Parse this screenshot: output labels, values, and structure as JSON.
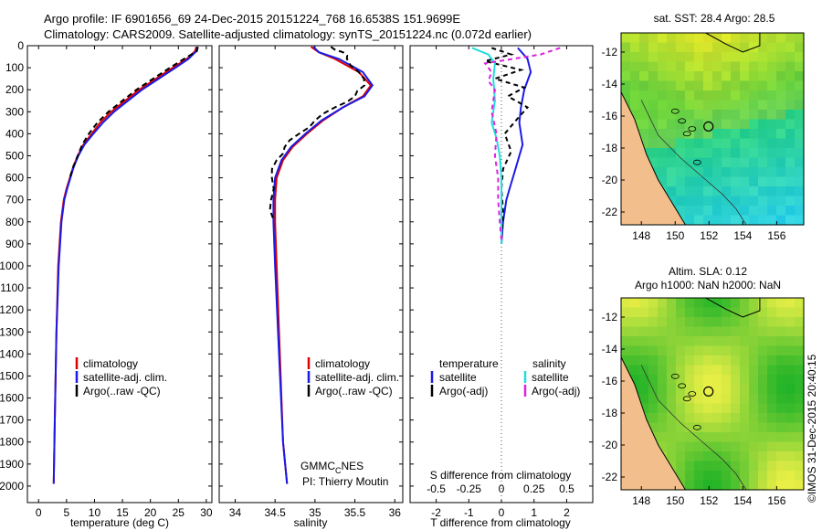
{
  "header": {
    "line1": "Argo profile: IF 6901656_69 24-Dec-2015 20151224_768 16.6538S 151.9699E",
    "line2": "Climatology: CARS2009. Satellite-adjusted climatology: synTS_20151224.nc (0.072d earlier)"
  },
  "colors": {
    "climatology": "#e00000",
    "satellite": "#1a1ae6",
    "argo": "#000000",
    "sat_salinity": "#22dddd",
    "argo_salinity": "#dd22dd"
  },
  "chart_data": [
    {
      "id": "temperature",
      "type": "line",
      "xlabel": "temperature (deg C)",
      "ylabel": "",
      "xlim": [
        -2,
        31
      ],
      "ylim": [
        2075,
        0
      ],
      "xticks": [
        "0",
        "5",
        "10",
        "15",
        "20",
        "25",
        "30"
      ],
      "xtick_values": [
        0,
        5,
        10,
        15,
        20,
        25,
        30
      ],
      "series": [
        {
          "name": "climatology",
          "color": "#e00000",
          "dash": "",
          "x": [
            28.2,
            28.0,
            26.5,
            24.0,
            21.0,
            18.0,
            15.5,
            13.0,
            11.0,
            9.5,
            8.0,
            7.0,
            6.2,
            5.6,
            5.0,
            4.5,
            4.0,
            3.5,
            3.2,
            2.9,
            2.7
          ],
          "y": [
            5,
            25,
            60,
            100,
            150,
            200,
            250,
            300,
            350,
            400,
            450,
            500,
            550,
            600,
            650,
            700,
            800,
            1000,
            1300,
            1700,
            1990
          ]
        },
        {
          "name": "satellite-adj. clim.",
          "color": "#1a1ae6",
          "dash": "",
          "x": [
            28.4,
            28.2,
            26.8,
            24.5,
            21.5,
            18.5,
            16.0,
            13.5,
            11.5,
            9.8,
            8.2,
            7.1,
            6.3,
            5.7,
            5.1,
            4.6,
            4.1,
            3.6,
            3.2,
            2.9,
            2.7
          ],
          "y": [
            5,
            25,
            60,
            100,
            150,
            200,
            250,
            300,
            350,
            400,
            450,
            500,
            550,
            600,
            650,
            700,
            800,
            1000,
            1300,
            1700,
            1990
          ]
        },
        {
          "name": "Argo(..raw -QC)",
          "color": "#000000",
          "dash": "6,4",
          "x": [
            28.5,
            28.3,
            26.0,
            23.5,
            20.5,
            17.5,
            15.0,
            12.5,
            10.5,
            9.0,
            7.8,
            7.0,
            6.2,
            5.6
          ],
          "y": [
            5,
            25,
            60,
            100,
            150,
            200,
            250,
            300,
            350,
            400,
            450,
            500,
            550,
            600
          ]
        }
      ],
      "legend": [
        "climatology",
        "satellite-adj. clim.",
        "Argo(..raw -QC)"
      ]
    },
    {
      "id": "salinity",
      "type": "line",
      "xlabel": "salinity",
      "xlim": [
        33.8,
        36.1
      ],
      "ylim": [
        2075,
        0
      ],
      "xticks": [
        "34",
        "34.5",
        "35",
        "35.5",
        "36"
      ],
      "xtick_values": [
        34,
        34.5,
        35,
        35.5,
        36
      ],
      "series": [
        {
          "name": "climatology",
          "color": "#e00000",
          "dash": "",
          "x": [
            34.95,
            35.05,
            35.25,
            35.55,
            35.7,
            35.6,
            35.35,
            35.1,
            34.9,
            34.72,
            34.6,
            34.52,
            34.5,
            34.5,
            34.52,
            34.56,
            34.6,
            34.65
          ],
          "y": [
            5,
            30,
            60,
            120,
            180,
            230,
            280,
            340,
            400,
            460,
            520,
            600,
            700,
            800,
            1000,
            1400,
            1800,
            1990
          ]
        },
        {
          "name": "satellite-adj. clim.",
          "color": "#1a1ae6",
          "dash": "",
          "x": [
            34.98,
            35.05,
            35.3,
            35.6,
            35.72,
            35.62,
            35.35,
            35.08,
            34.88,
            34.7,
            34.58,
            34.5,
            34.48,
            34.48,
            34.5,
            34.55,
            34.6,
            34.65
          ],
          "y": [
            5,
            30,
            60,
            120,
            180,
            230,
            280,
            340,
            400,
            460,
            520,
            600,
            700,
            800,
            1000,
            1400,
            1800,
            1990
          ]
        },
        {
          "name": "Argo(..raw -QC)",
          "color": "#000000",
          "dash": "6,4",
          "x": [
            35.2,
            35.35,
            35.4,
            35.55,
            35.62,
            35.5,
            35.25,
            35.0,
            34.8,
            34.62,
            34.52,
            34.46,
            34.45,
            34.48
          ],
          "y": [
            5,
            30,
            60,
            120,
            180,
            230,
            280,
            340,
            400,
            460,
            520,
            600,
            700,
            790
          ],
          "jitter": true
        }
      ],
      "legend": [
        "climatology",
        "satellite-adj. clim.",
        "Argo(..raw -QC)"
      ],
      "annotations": {
        "gmmc": "GMMC",
        "gmmc_sub": "C",
        "gmmc_tail": "NES",
        "pi": "PI: Thierry Moutin"
      }
    },
    {
      "id": "difference",
      "type": "line",
      "xlabel": "T difference from climatology",
      "xlabel_top": "S difference from climatology",
      "xlim": [
        -2.8,
        2.8
      ],
      "ylim": [
        2075,
        0
      ],
      "xticks": [
        "-2",
        "-1",
        "0",
        "1",
        "2"
      ],
      "xtick_values": [
        -2,
        -1,
        0,
        1,
        2
      ],
      "sticks": [
        "-0.5",
        "-0.25",
        "0",
        "0.25",
        "0.5"
      ],
      "stick_values": [
        -2,
        -1,
        0,
        1,
        2
      ],
      "series": [
        {
          "name": "temperature satellite",
          "color": "#1a1ae6",
          "dash": "",
          "x": [
            0.5,
            0.8,
            0.9,
            0.7,
            0.6,
            0.55,
            0.6,
            0.65,
            0.55,
            0.45,
            0.35,
            0.25,
            0.15,
            0.05,
            0.0
          ],
          "y": [
            10,
            60,
            120,
            200,
            280,
            350,
            400,
            450,
            500,
            550,
            600,
            650,
            700,
            800,
            900
          ]
        },
        {
          "name": "temperature Argo(-adj)",
          "color": "#000000",
          "dash": "5,4",
          "x": [
            -0.3,
            0.3,
            -0.5,
            0.6,
            -0.2,
            0.7,
            0.2,
            0.8,
            0.5,
            0.1,
            0.3,
            0.05,
            0.0,
            0.05,
            0.0
          ],
          "y": [
            10,
            40,
            70,
            110,
            150,
            190,
            230,
            280,
            330,
            400,
            480,
            560,
            650,
            750,
            880
          ]
        },
        {
          "name": "salinity satellite",
          "color": "#22dddd",
          "dash": "",
          "x": [
            -0.9,
            -0.4,
            -0.2,
            -0.25,
            -0.2,
            -0.3,
            -0.15,
            -0.05,
            0.0,
            0.0,
            0.0,
            0.0
          ],
          "y": [
            10,
            40,
            80,
            150,
            250,
            350,
            420,
            500,
            600,
            700,
            800,
            900
          ]
        },
        {
          "name": "salinity Argo(-adj)",
          "color": "#dd22dd",
          "dash": "5,4",
          "x": [
            1.8,
            1.2,
            -0.5,
            -0.3,
            -0.4,
            -0.2,
            -0.3,
            -0.15,
            -0.2,
            -0.1,
            -0.1,
            -0.05,
            0.0
          ],
          "y": [
            10,
            40,
            80,
            120,
            160,
            200,
            300,
            400,
            500,
            600,
            700,
            800,
            880
          ]
        }
      ],
      "legend_groups": [
        "temperature",
        "salinity"
      ],
      "legend": [
        "satellite",
        "Argo(-adj)",
        "satellite",
        "Argo(-adj)"
      ]
    }
  ],
  "depth_ticks": [
    "0",
    "100",
    "200",
    "300",
    "400",
    "500",
    "600",
    "700",
    "800",
    "900",
    "1000",
    "1100",
    "1200",
    "1300",
    "1400",
    "1500",
    "1600",
    "1700",
    "1800",
    "1900",
    "2000"
  ],
  "depth_values": [
    0,
    100,
    200,
    300,
    400,
    500,
    600,
    700,
    800,
    900,
    1000,
    1100,
    1200,
    1300,
    1400,
    1500,
    1600,
    1700,
    1800,
    1900,
    2000
  ],
  "maps": {
    "sst_title": "sat. SST: 28.4  Argo: 28.5",
    "sla_title1": "Altim. SLA: 0.12",
    "sla_title2": "Argo h1000: NaN  h2000: NaN",
    "lat_ticks": [
      "-12",
      "-14",
      "-16",
      "-18",
      "-20",
      "-22"
    ],
    "lat_values": [
      -12,
      -14,
      -16,
      -18,
      -20,
      -22
    ],
    "lon_ticks": [
      "148",
      "150",
      "152",
      "154",
      "156"
    ],
    "lon_values": [
      148,
      150,
      152,
      154,
      156
    ]
  },
  "credit": "©IMOS 31-Dec-2015 20:40:15"
}
